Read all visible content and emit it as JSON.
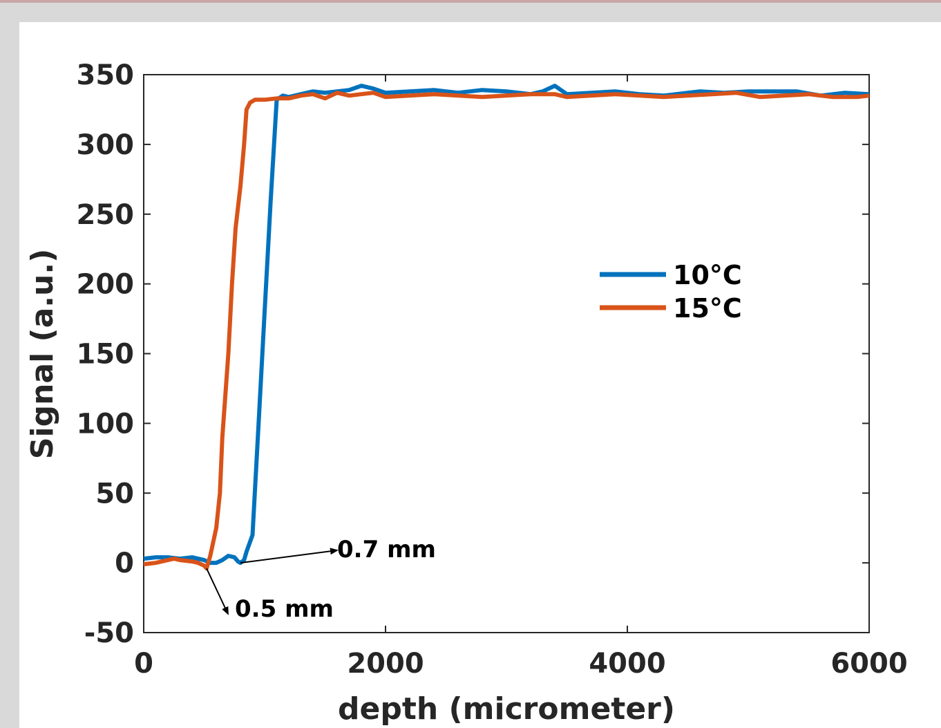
{
  "chart_data": {
    "type": "line",
    "title": "",
    "xlabel": "depth (micrometer)",
    "ylabel": "Signal (a.u.)",
    "xlim": [
      0,
      6000
    ],
    "ylim": [
      -50,
      350
    ],
    "xticks": [
      0,
      2000,
      4000,
      6000
    ],
    "yticks": [
      -50,
      0,
      50,
      100,
      150,
      200,
      250,
      300,
      350
    ],
    "grid": false,
    "legend_position": "center-right",
    "series": [
      {
        "name": "10°C",
        "color": "#0072BD",
        "points": [
          [
            0,
            3
          ],
          [
            100,
            4
          ],
          [
            200,
            4
          ],
          [
            300,
            3
          ],
          [
            400,
            4
          ],
          [
            500,
            2
          ],
          [
            550,
            0
          ],
          [
            600,
            0
          ],
          [
            650,
            2
          ],
          [
            700,
            5
          ],
          [
            750,
            4
          ],
          [
            780,
            1
          ],
          [
            800,
            0
          ],
          [
            830,
            2
          ],
          [
            850,
            8
          ],
          [
            900,
            20
          ],
          [
            950,
            100
          ],
          [
            1000,
            180
          ],
          [
            1050,
            260
          ],
          [
            1100,
            332
          ],
          [
            1150,
            335
          ],
          [
            1200,
            334
          ],
          [
            1300,
            336
          ],
          [
            1400,
            338
          ],
          [
            1500,
            337
          ],
          [
            1600,
            338
          ],
          [
            1700,
            339
          ],
          [
            1800,
            342
          ],
          [
            1900,
            340
          ],
          [
            2000,
            337
          ],
          [
            2200,
            338
          ],
          [
            2400,
            339
          ],
          [
            2600,
            337
          ],
          [
            2800,
            339
          ],
          [
            3000,
            338
          ],
          [
            3200,
            336
          ],
          [
            3300,
            338
          ],
          [
            3400,
            342
          ],
          [
            3500,
            336
          ],
          [
            3700,
            337
          ],
          [
            3900,
            338
          ],
          [
            4100,
            336
          ],
          [
            4300,
            335
          ],
          [
            4500,
            337
          ],
          [
            4600,
            338
          ],
          [
            4800,
            337
          ],
          [
            5000,
            338
          ],
          [
            5200,
            338
          ],
          [
            5400,
            338
          ],
          [
            5600,
            335
          ],
          [
            5800,
            337
          ],
          [
            6000,
            336
          ]
        ]
      },
      {
        "name": "15°C",
        "color": "#D95319",
        "points": [
          [
            0,
            -1
          ],
          [
            100,
            0
          ],
          [
            200,
            2
          ],
          [
            250,
            3
          ],
          [
            300,
            2
          ],
          [
            400,
            1
          ],
          [
            450,
            0
          ],
          [
            500,
            -2
          ],
          [
            520,
            -4
          ],
          [
            550,
            5
          ],
          [
            600,
            25
          ],
          [
            630,
            50
          ],
          [
            650,
            90
          ],
          [
            700,
            150
          ],
          [
            730,
            200
          ],
          [
            760,
            240
          ],
          [
            800,
            270
          ],
          [
            830,
            300
          ],
          [
            850,
            325
          ],
          [
            880,
            330
          ],
          [
            920,
            332
          ],
          [
            1000,
            332
          ],
          [
            1100,
            333
          ],
          [
            1200,
            333
          ],
          [
            1300,
            335
          ],
          [
            1400,
            336
          ],
          [
            1500,
            333
          ],
          [
            1600,
            337
          ],
          [
            1700,
            335
          ],
          [
            1800,
            336
          ],
          [
            1900,
            337
          ],
          [
            2000,
            334
          ],
          [
            2200,
            335
          ],
          [
            2400,
            336
          ],
          [
            2600,
            335
          ],
          [
            2800,
            334
          ],
          [
            3000,
            335
          ],
          [
            3200,
            336
          ],
          [
            3400,
            336
          ],
          [
            3500,
            334
          ],
          [
            3700,
            335
          ],
          [
            3900,
            336
          ],
          [
            4100,
            335
          ],
          [
            4300,
            334
          ],
          [
            4500,
            335
          ],
          [
            4700,
            336
          ],
          [
            4900,
            337
          ],
          [
            5100,
            334
          ],
          [
            5300,
            335
          ],
          [
            5500,
            336
          ],
          [
            5700,
            334
          ],
          [
            5900,
            334
          ],
          [
            6000,
            335
          ]
        ]
      }
    ],
    "annotations": [
      {
        "text": "0.7 mm",
        "x": 800,
        "y": 0
      },
      {
        "text": "0.5 mm",
        "x": 520,
        "y": -4
      }
    ]
  }
}
